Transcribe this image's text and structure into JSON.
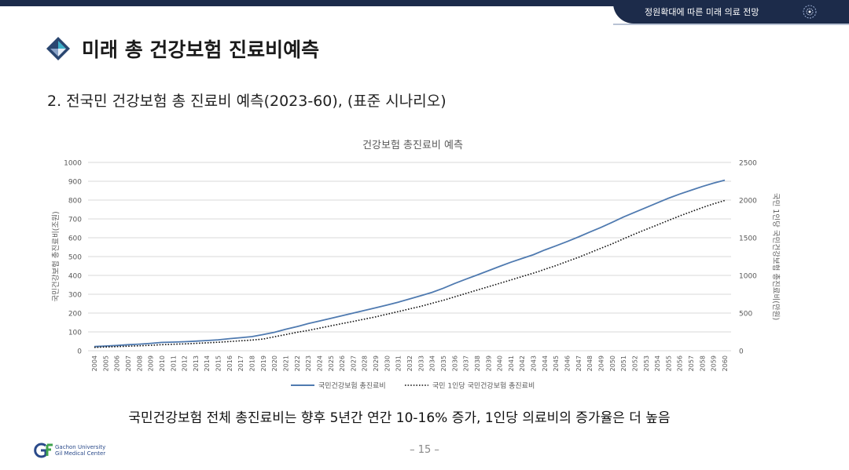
{
  "header": {
    "tab_text": "정원확대에 따른 미래 의료 전망",
    "title": "미래 총 건강보험 진료비예측",
    "subtitle": "2. 전국민 건강보험 총 진료비 예측(2023-60), (표준 시나리오)"
  },
  "footer": {
    "note": "국민건강보험 전체 총진료비는 향후 5년간 연간 10-16% 증가, 1인당 의료비의 증가율은 더 높음",
    "page_number": "– 15 –",
    "brand_line1": "Gachon University",
    "brand_line2": "Gil Medical Center"
  },
  "colors": {
    "navy": "#1c2b4a",
    "series_line": "#4f7ab0",
    "series_dotted": "#111111",
    "grid": "#d9d9d9"
  },
  "chart_data": {
    "type": "line",
    "title": "건강보험 총진료비 예측",
    "ylabel_left": "국민건강보험 총진료비(조원)",
    "ylabel_right": "국민 1인당 국민건강보험 총진료비(만원)",
    "ylim_left": [
      0,
      1000
    ],
    "ylim_right": [
      0,
      2500
    ],
    "yticks_left": [
      "0",
      "100",
      "200",
      "300",
      "400",
      "500",
      "600",
      "700",
      "800",
      "900",
      "1000"
    ],
    "yticks_right": [
      "0",
      "500",
      "1000",
      "1500",
      "2000",
      "2500"
    ],
    "legend_position": "bottom",
    "grid": true,
    "x": [
      "2004",
      "2005",
      "2006",
      "2007",
      "2008",
      "2009",
      "2010",
      "2011",
      "2012",
      "2013",
      "2014",
      "2015",
      "2016",
      "2017",
      "2018",
      "2019",
      "2020",
      "2021",
      "2022",
      "2023",
      "2024",
      "2025",
      "2026",
      "2027",
      "2028",
      "2029",
      "2030",
      "2031",
      "2032",
      "2033",
      "2034",
      "2035",
      "2036",
      "2037",
      "2038",
      "2039",
      "2040",
      "2041",
      "2042",
      "2043",
      "2044",
      "2045",
      "2046",
      "2047",
      "2048",
      "2049",
      "2050",
      "2051",
      "2052",
      "2053",
      "2054",
      "2055",
      "2056",
      "2057",
      "2058",
      "2059",
      "2060"
    ],
    "series": [
      {
        "name": "국민건강보험 총진료비",
        "axis": "left",
        "style": "solid",
        "values": [
          22,
          25,
          28,
          32,
          35,
          39,
          44,
          46,
          48,
          51,
          54,
          58,
          64,
          69,
          75,
          86,
          98,
          114,
          128,
          144,
          158,
          172,
          186,
          200,
          214,
          228,
          243,
          258,
          275,
          292,
          310,
          332,
          357,
          380,
          402,
          425,
          448,
          470,
          490,
          510,
          535,
          557,
          580,
          604,
          630,
          655,
          682,
          710,
          735,
          760,
          785,
          810,
          832,
          852,
          872,
          890,
          906
        ]
      },
      {
        "name": "국민 1인당 국민건강보험 총진료비",
        "axis": "right",
        "style": "dotted",
        "values": [
          45,
          50,
          55,
          60,
          66,
          72,
          80,
          86,
          91,
          98,
          105,
          112,
          122,
          132,
          142,
          155,
          185,
          215,
          245,
          270,
          300,
          330,
          360,
          390,
          420,
          450,
          485,
          520,
          555,
          590,
          630,
          670,
          715,
          760,
          805,
          850,
          895,
          940,
          985,
          1030,
          1080,
          1130,
          1185,
          1240,
          1300,
          1360,
          1420,
          1485,
          1550,
          1610,
          1670,
          1730,
          1790,
          1845,
          1900,
          1950,
          1995
        ]
      }
    ]
  }
}
